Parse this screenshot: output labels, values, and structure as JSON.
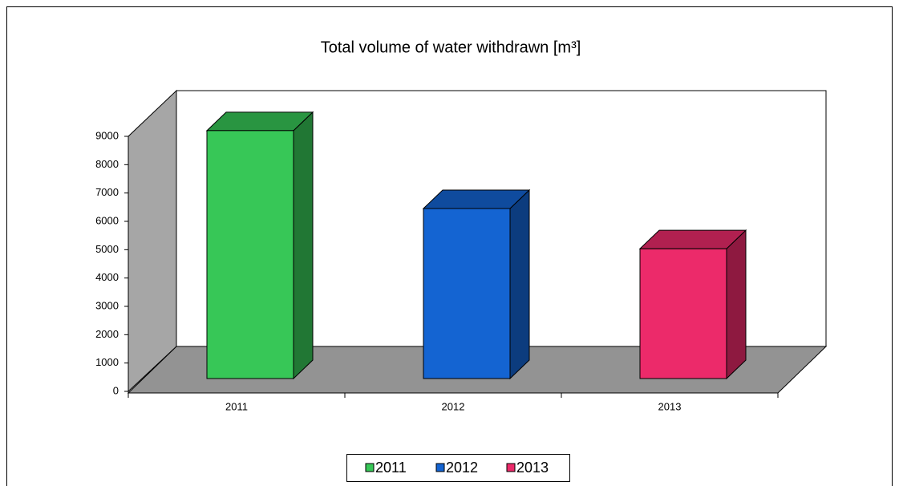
{
  "chart_data": {
    "type": "bar",
    "title": "Total volume of water withdrawn [m³]",
    "categories": [
      "2011",
      "2012",
      "2013"
    ],
    "series": [
      {
        "name": "2011",
        "color": "#37c757",
        "values": [
          8750,
          null,
          null
        ]
      },
      {
        "name": "2012",
        "color": "#1464d2",
        "values": [
          null,
          6000,
          null
        ]
      },
      {
        "name": "2013",
        "color": "#ec2a6a",
        "values": [
          null,
          null,
          4580
        ]
      }
    ],
    "ylim": [
      0,
      9000
    ],
    "yticks": [
      0,
      1000,
      2000,
      3000,
      4000,
      5000,
      6000,
      7000,
      8000,
      9000
    ],
    "grid": false,
    "legend": "bottom"
  }
}
